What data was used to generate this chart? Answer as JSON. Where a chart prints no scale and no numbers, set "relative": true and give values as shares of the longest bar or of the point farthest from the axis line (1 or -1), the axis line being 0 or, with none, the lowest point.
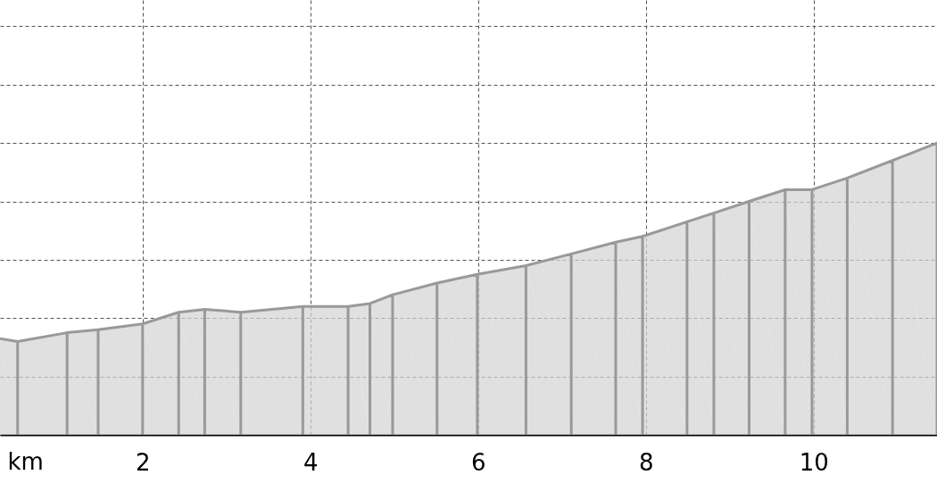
{
  "chart_data": {
    "type": "area",
    "relative": true,
    "xlabel": "km",
    "xlim": [
      0.3,
      11.47
    ],
    "xticks": [
      2,
      4,
      6,
      8,
      10
    ],
    "grid": true,
    "line_style": "dashed",
    "x": [
      0.3,
      0.51,
      1.1,
      1.47,
      2.0,
      2.43,
      2.74,
      3.17,
      3.91,
      4.45,
      4.71,
      4.98,
      5.51,
      5.99,
      6.57,
      7.11,
      7.64,
      7.96,
      8.49,
      8.81,
      9.23,
      9.66,
      9.98,
      10.4,
      10.94,
      11.47
    ],
    "series": [
      {
        "color": "#d3d3d3",
        "values": [
          0.33,
          0.32,
          0.35,
          0.36,
          0.38,
          0.42,
          0.43,
          0.42,
          0.44,
          0.44,
          0.45,
          0.48,
          0.52,
          0.55,
          0.58,
          0.62,
          0.66,
          0.68,
          0.73,
          0.76,
          0.8,
          0.84,
          0.84,
          0.88,
          0.94,
          1.0
        ]
      }
    ]
  }
}
